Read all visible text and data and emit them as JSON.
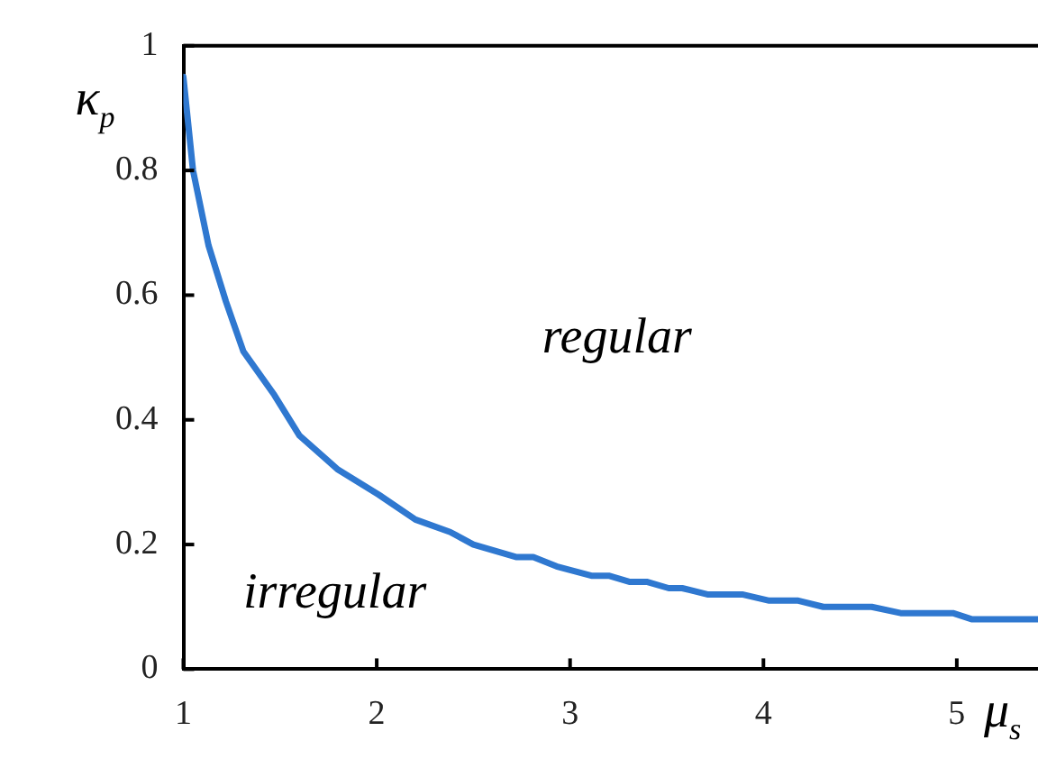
{
  "chart_data": {
    "type": "line",
    "xlabel": "μ$_{s}$",
    "ylabel": "κ$_{p}$",
    "annotations": [
      "regular",
      "irregular"
    ],
    "series": [
      {
        "color": "#2f78d0",
        "x": [
          1.0,
          1.05,
          1.13,
          1.22,
          1.31,
          1.47,
          1.6,
          1.8,
          2.01,
          2.2,
          2.38,
          2.5,
          2.72,
          2.81,
          2.93,
          3.11,
          3.2,
          3.31,
          3.4,
          3.51,
          3.58,
          3.71,
          3.89,
          4.03,
          4.18,
          4.31,
          4.56,
          4.71,
          4.98,
          5.08,
          5.42
        ],
        "values": [
          0.95,
          0.8,
          0.68,
          0.59,
          0.51,
          0.44,
          0.375,
          0.32,
          0.28,
          0.24,
          0.22,
          0.2,
          0.18,
          0.18,
          0.165,
          0.15,
          0.15,
          0.14,
          0.14,
          0.13,
          0.13,
          0.12,
          0.12,
          0.11,
          0.11,
          0.1,
          0.1,
          0.09,
          0.09,
          0.08,
          0.08
        ]
      }
    ],
    "xlim": [
      1,
      5.42
    ],
    "xticks": [
      1,
      2,
      3,
      4,
      5
    ],
    "ylim": [
      0,
      1
    ],
    "yticks": [
      0,
      0.2,
      0.4,
      0.6,
      0.8,
      1
    ],
    "grid": false,
    "legend": false,
    "marker": "none",
    "line_style": "solid"
  }
}
